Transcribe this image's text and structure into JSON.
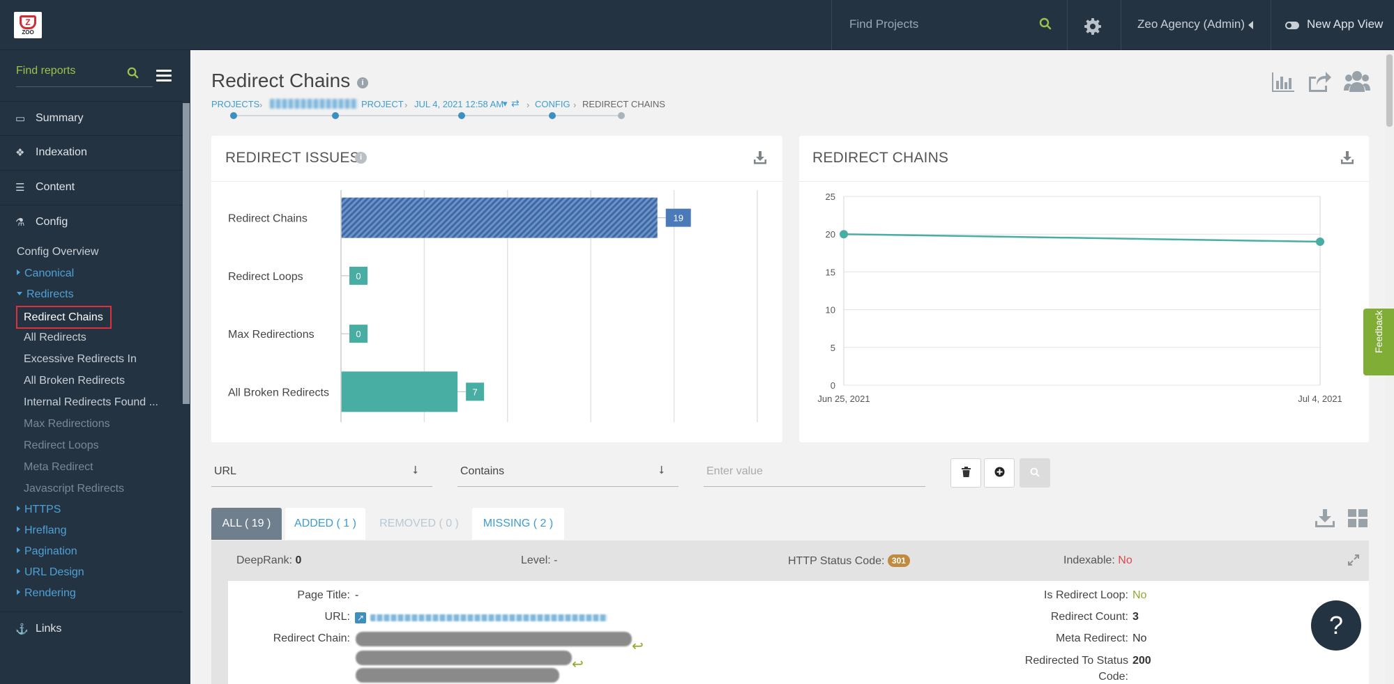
{
  "topbar": {
    "logo_text": "ZOO",
    "search_placeholder": "Find Projects",
    "account_label": "Zeo Agency (Admin)",
    "new_app_view_label": "New App View"
  },
  "sidebar": {
    "search_placeholder": "Find reports",
    "main_items": [
      {
        "label": "Summary",
        "icon": "monitor-icon"
      },
      {
        "label": "Indexation",
        "icon": "cubes-icon"
      },
      {
        "label": "Content",
        "icon": "list-icon"
      },
      {
        "label": "Config",
        "icon": "flask-icon"
      }
    ],
    "config_overview": "Config Overview",
    "categories": {
      "canonical": "Canonical",
      "redirects": "Redirects",
      "https": "HTTPS",
      "hreflang": "Hreflang",
      "pagination": "Pagination",
      "url_design": "URL Design",
      "rendering": "Rendering"
    },
    "redirect_items": [
      "Redirect Chains",
      "All Redirects",
      "Excessive Redirects In",
      "All Broken Redirects",
      "Internal Redirects Found ...",
      "Max Redirections",
      "Redirect Loops",
      "Meta Redirect",
      "Javascript Redirects"
    ],
    "links_label": "Links"
  },
  "page": {
    "title": "Redirect Chains",
    "breadcrumb": {
      "projects": "PROJECTS",
      "project": "PROJECT",
      "crawl_date": "JUL 4, 2021 12:58 AM",
      "config": "CONFIG",
      "current": "REDIRECT CHAINS"
    }
  },
  "chart_data": [
    {
      "type": "bar",
      "title": "REDIRECT ISSUES",
      "orientation": "horizontal",
      "categories": [
        "Redirect Chains",
        "Redirect Loops",
        "Max Redirections",
        "All Broken Redirects"
      ],
      "values": [
        19,
        0,
        0,
        7
      ],
      "colors": [
        "#4a7ab8",
        "#48ada3",
        "#48ada3",
        "#48ada3"
      ],
      "xlim": [
        0,
        25
      ],
      "grid": true
    },
    {
      "type": "line",
      "title": "REDIRECT CHAINS",
      "x": [
        "Jun 25, 2021",
        "Jul 4, 2021"
      ],
      "y": [
        20,
        19
      ],
      "ylim": [
        0,
        25
      ],
      "yticks": [
        0,
        5,
        10,
        15,
        20,
        25
      ],
      "color": "#48ada3",
      "grid": true
    }
  ],
  "filter": {
    "field": "URL",
    "operator": "Contains",
    "value_placeholder": "Enter value"
  },
  "tabs": [
    {
      "label": "ALL ( 19 )",
      "state": "active"
    },
    {
      "label": "ADDED ( 1 )",
      "state": "normal"
    },
    {
      "label": "REMOVED ( 0 )",
      "state": "disabled"
    },
    {
      "label": "MISSING ( 2 )",
      "state": "normal"
    }
  ],
  "result": {
    "deeprank_label": "DeepRank:",
    "deeprank_value": "0",
    "level_label": "Level: -",
    "http_status_label": "HTTP Status Code:",
    "http_status_value": "301",
    "indexable_label": "Indexable:",
    "indexable_value": "No",
    "page_title_label": "Page Title:",
    "page_title_value": "-",
    "url_label": "URL:",
    "redirect_chain_label": "Redirect Chain:",
    "is_redirect_loop_label": "Is Redirect Loop:",
    "is_redirect_loop_value": "No",
    "redirect_count_label": "Redirect Count:",
    "redirect_count_value": "3",
    "meta_redirect_label": "Meta Redirect:",
    "meta_redirect_value": "No",
    "redirected_to_status_label_1": "Redirected To Status",
    "redirected_to_status_label_2": "Code:",
    "redirected_to_status_value": "200"
  },
  "help_label": "?",
  "feedback_label": "Feedback",
  "colors": {
    "sidebar_bg": "#243342",
    "accent_blue": "#3d9cd2",
    "accent_green": "#9ec14a",
    "bar_blue": "#4a7ab8",
    "bar_teal": "#48ada3",
    "highlight_red": "#e0303d"
  }
}
